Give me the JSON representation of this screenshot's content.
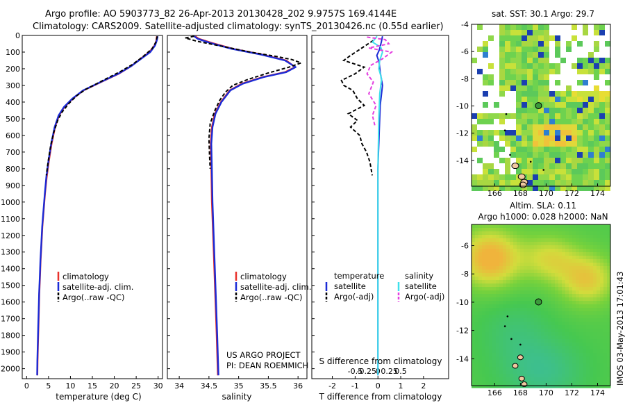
{
  "header": {
    "line1": "Argo profile: AO 5903773_82 26-Apr-2013 20130428_202 9.9757S 169.4144E",
    "line2": "Climatology: CARS2009. Satellite-adjusted climatology: synTS_20130426.nc (0.55d earlier)"
  },
  "colors": {
    "climatology": "#e8312b",
    "satellite": "#1b2bd6",
    "argo": "#000000",
    "sal_satellite": "#3fe0ec",
    "sal_argo": "#e43fe0"
  },
  "chart_data": [
    {
      "type": "line",
      "id": "temperature",
      "xlabel": "temperature (deg C)",
      "xlim": [
        -1,
        31
      ],
      "ylim": [
        2060,
        0
      ],
      "xticks": [
        0,
        5,
        10,
        15,
        20,
        25,
        30
      ],
      "yticks": [
        0,
        100,
        200,
        300,
        400,
        500,
        600,
        700,
        800,
        900,
        1000,
        1100,
        1200,
        1300,
        1400,
        1500,
        1600,
        1700,
        1800,
        1900,
        2000
      ],
      "legend": [
        "climatology",
        "satellite-adj. clim.",
        "Argo(..raw -QC)"
      ],
      "series": [
        {
          "name": "climatology",
          "points": [
            [
              29.7,
              5
            ],
            [
              29.6,
              30
            ],
            [
              29.2,
              60
            ],
            [
              28,
              100
            ],
            [
              26,
              140
            ],
            [
              23.8,
              185
            ],
            [
              21,
              230
            ],
            [
              17,
              280
            ],
            [
              13,
              330
            ],
            [
              10.5,
              380
            ],
            [
              8.6,
              430
            ],
            [
              7.4,
              480
            ],
            [
              6.5,
              550
            ],
            [
              5.7,
              650
            ],
            [
              5.1,
              750
            ],
            [
              4.6,
              850
            ],
            [
              4.2,
              950
            ],
            [
              3.9,
              1050
            ],
            [
              3.6,
              1150
            ],
            [
              3.4,
              1250
            ],
            [
              3.2,
              1350
            ],
            [
              3.05,
              1450
            ],
            [
              2.9,
              1550
            ],
            [
              2.8,
              1650
            ],
            [
              2.7,
              1750
            ],
            [
              2.6,
              1850
            ],
            [
              2.5,
              1950
            ],
            [
              2.45,
              2040
            ]
          ]
        },
        {
          "name": "satellite-adj. clim.",
          "points": [
            [
              29.9,
              5
            ],
            [
              29.7,
              30
            ],
            [
              29.3,
              60
            ],
            [
              28.2,
              100
            ],
            [
              26.1,
              140
            ],
            [
              23.8,
              185
            ],
            [
              20.9,
              230
            ],
            [
              16.9,
              280
            ],
            [
              12.9,
              330
            ],
            [
              10.4,
              380
            ],
            [
              8.5,
              430
            ],
            [
              7.3,
              480
            ],
            [
              6.4,
              550
            ],
            [
              5.6,
              650
            ],
            [
              5,
              750
            ],
            [
              4.5,
              850
            ],
            [
              4.15,
              950
            ],
            [
              3.85,
              1050
            ],
            [
              3.55,
              1150
            ],
            [
              3.35,
              1250
            ],
            [
              3.15,
              1350
            ],
            [
              3,
              1450
            ],
            [
              2.85,
              1550
            ],
            [
              2.75,
              1650
            ],
            [
              2.65,
              1750
            ],
            [
              2.55,
              1850
            ],
            [
              2.45,
              1950
            ],
            [
              2.4,
              2040
            ]
          ]
        },
        {
          "name": "Argo(..raw -QC)",
          "points": [
            [
              29.8,
              5
            ],
            [
              29.5,
              40
            ],
            [
              28.6,
              80
            ],
            [
              26.4,
              130
            ],
            [
              24.1,
              175
            ],
            [
              21.5,
              215
            ],
            [
              18.5,
              255
            ],
            [
              15.6,
              295
            ],
            [
              13.4,
              325
            ],
            [
              11.3,
              365
            ],
            [
              9.6,
              410
            ],
            [
              8.1,
              460
            ],
            [
              7.1,
              510
            ],
            [
              6.2,
              580
            ],
            [
              5.5,
              660
            ],
            [
              4.9,
              760
            ],
            [
              4.5,
              840
            ]
          ]
        }
      ]
    },
    {
      "type": "line",
      "id": "salinity",
      "xlabel": "salinity",
      "xlim": [
        33.8,
        36.15
      ],
      "ylim": [
        2060,
        0
      ],
      "xticks": [
        34,
        34.5,
        35,
        35.5,
        36
      ],
      "legend": [
        "climatology",
        "satellite-adj. clim.",
        "Argo(..raw -QC)"
      ],
      "series": [
        {
          "name": "climatology",
          "points": [
            [
              34.27,
              5
            ],
            [
              34.33,
              20
            ],
            [
              34.55,
              45
            ],
            [
              34.9,
              80
            ],
            [
              35.4,
              115
            ],
            [
              35.8,
              150
            ],
            [
              35.95,
              190
            ],
            [
              35.78,
              220
            ],
            [
              35.4,
              250
            ],
            [
              35.05,
              290
            ],
            [
              34.85,
              330
            ],
            [
              34.7,
              400
            ],
            [
              34.6,
              470
            ],
            [
              34.55,
              550
            ],
            [
              34.53,
              650
            ],
            [
              34.54,
              800
            ],
            [
              34.55,
              1000
            ],
            [
              34.57,
              1200
            ],
            [
              34.59,
              1400
            ],
            [
              34.61,
              1600
            ],
            [
              34.63,
              1800
            ],
            [
              34.65,
              2040
            ]
          ]
        },
        {
          "name": "satellite-adj. clim.",
          "points": [
            [
              34.25,
              5
            ],
            [
              34.31,
              20
            ],
            [
              34.52,
              45
            ],
            [
              34.88,
              80
            ],
            [
              35.38,
              115
            ],
            [
              35.78,
              150
            ],
            [
              35.96,
              190
            ],
            [
              35.8,
              220
            ],
            [
              35.42,
              250
            ],
            [
              35.07,
              290
            ],
            [
              34.86,
              330
            ],
            [
              34.71,
              400
            ],
            [
              34.61,
              470
            ],
            [
              34.56,
              550
            ],
            [
              34.54,
              650
            ],
            [
              34.55,
              800
            ],
            [
              34.56,
              1000
            ],
            [
              34.58,
              1200
            ],
            [
              34.6,
              1400
            ],
            [
              34.62,
              1600
            ],
            [
              34.64,
              1800
            ],
            [
              34.66,
              2040
            ]
          ]
        },
        {
          "name": "Argo(..raw -QC)",
          "points": [
            [
              34.25,
              5
            ],
            [
              34.1,
              15
            ],
            [
              34.3,
              35
            ],
            [
              34.65,
              60
            ],
            [
              35.2,
              100
            ],
            [
              35.62,
              125
            ],
            [
              35.9,
              145
            ],
            [
              36.05,
              165
            ],
            [
              35.85,
              190
            ],
            [
              35.5,
              225
            ],
            [
              35.15,
              265
            ],
            [
              34.9,
              300
            ],
            [
              34.78,
              340
            ],
            [
              34.68,
              390
            ],
            [
              34.6,
              450
            ],
            [
              34.52,
              530
            ],
            [
              34.5,
              620
            ],
            [
              34.51,
              720
            ],
            [
              34.52,
              800
            ]
          ]
        }
      ]
    },
    {
      "type": "line",
      "id": "difference",
      "xlabel": "T difference from climatology",
      "xlabel2": "S difference from climatology",
      "xlim": [
        -2.9,
        3.1
      ],
      "ylim": [
        2060,
        0
      ],
      "xticks": [
        -2,
        -1,
        0,
        1,
        2
      ],
      "xticks_S": [
        "-0.5",
        "-0.25",
        "0",
        "0.25",
        "0.5"
      ],
      "legend_group_T": "temperature",
      "legend_group_S": "salinity",
      "legend": [
        "satellite",
        "Argo(-adj)",
        "satellite",
        "Argo(-adj)"
      ],
      "series": [
        {
          "name": "T satellite",
          "points": [
            [
              0.2,
              5
            ],
            [
              0.15,
              40
            ],
            [
              0.05,
              90
            ],
            [
              -0.05,
              120
            ],
            [
              0.05,
              160
            ],
            [
              0.1,
              220
            ],
            [
              0.2,
              300
            ],
            [
              0.1,
              420
            ],
            [
              0.05,
              600
            ],
            [
              0,
              800
            ],
            [
              0,
              1200
            ],
            [
              0,
              1600
            ],
            [
              0,
              2040
            ]
          ]
        },
        {
          "name": "T Argo(-adj)",
          "points": [
            [
              -0.2,
              30
            ],
            [
              -1.2,
              120
            ],
            [
              -1.5,
              150
            ],
            [
              -0.6,
              190
            ],
            [
              -1,
              230
            ],
            [
              -1.6,
              270
            ],
            [
              -1.5,
              300
            ],
            [
              -1.1,
              330
            ],
            [
              -0.9,
              380
            ],
            [
              -0.6,
              420
            ],
            [
              -1.3,
              470
            ],
            [
              -0.9,
              510
            ],
            [
              -1.2,
              550
            ],
            [
              -0.8,
              600
            ],
            [
              -0.7,
              650
            ],
            [
              -0.5,
              700
            ],
            [
              -0.35,
              760
            ],
            [
              -0.25,
              840
            ]
          ]
        },
        {
          "name": "S satellite",
          "points": [
            [
              -0.01,
              5
            ],
            [
              -0.06,
              40
            ],
            [
              0.03,
              70
            ],
            [
              0.05,
              100
            ],
            [
              0.02,
              150
            ],
            [
              0.01,
              200
            ],
            [
              0.04,
              260
            ],
            [
              0.02,
              350
            ],
            [
              0.01,
              500
            ],
            [
              0,
              800
            ],
            [
              0,
              1200
            ],
            [
              0,
              1600
            ],
            [
              0,
              2040
            ]
          ]
        },
        {
          "name": "S Argo(-adj)",
          "points": [
            [
              -0.12,
              10
            ],
            [
              0.08,
              25
            ],
            [
              0.12,
              50
            ],
            [
              -0.1,
              75
            ],
            [
              0.15,
              100
            ],
            [
              0.05,
              140
            ],
            [
              -0.08,
              180
            ],
            [
              -0.12,
              230
            ],
            [
              -0.05,
              280
            ],
            [
              -0.1,
              350
            ],
            [
              -0.02,
              420
            ],
            [
              -0.06,
              480
            ],
            [
              -0.03,
              550
            ]
          ]
        }
      ]
    },
    {
      "type": "heatmap",
      "id": "sst_map",
      "title": "sat. SST: 30.1  Argo: 29.7",
      "xlim": [
        164.2,
        175
      ],
      "ylim": [
        -15.9,
        -4
      ],
      "xticks": [
        166,
        168,
        170,
        172,
        174
      ],
      "yticks": [
        -4,
        -6,
        -8,
        -10,
        -12,
        -14
      ],
      "argo_position": [
        169.41,
        -9.98
      ]
    },
    {
      "type": "heatmap",
      "id": "sla_map",
      "title": "Altim. SLA: 0.11",
      "subtitle": "Argo h1000: 0.028 h2000: NaN",
      "xlim": [
        164.2,
        175
      ],
      "ylim": [
        -15.9,
        -4.5
      ],
      "xticks": [
        166,
        168,
        170,
        172,
        174
      ],
      "yticks": [
        -6,
        -8,
        -10,
        -12,
        -14
      ],
      "argo_position": [
        169.41,
        -9.98
      ]
    }
  ],
  "annotations": {
    "project": "US ARGO PROJECT",
    "pi": "PI: DEAN ROEMMICH",
    "stamp": "IMOS 03-May-2013 17:01:43"
  }
}
